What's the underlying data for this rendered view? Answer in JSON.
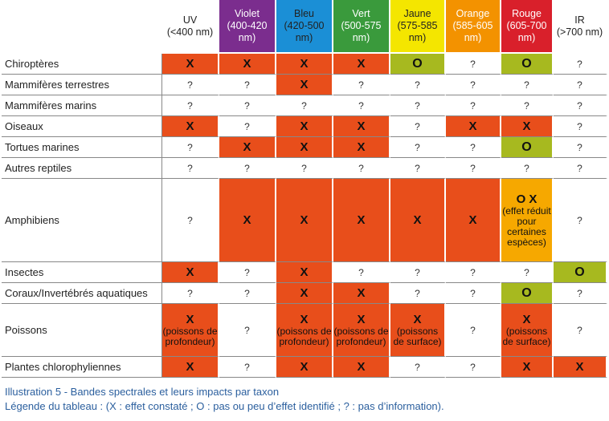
{
  "columns": [
    {
      "name": "UV",
      "range": "(<400 nm)",
      "color": "#ffffff",
      "text": "#222222"
    },
    {
      "name": "Violet",
      "range": "(400-420 nm)",
      "color": "#7b2d8e",
      "text": "#ffffff"
    },
    {
      "name": "Bleu",
      "range": "(420-500 nm)",
      "color": "#1b8fd6",
      "text": "#222222"
    },
    {
      "name": "Vert",
      "range": "(500-575 nm)",
      "color": "#3a9a3c",
      "text": "#ffffff"
    },
    {
      "name": "Jaune",
      "range": "(575-585 nm)",
      "color": "#f4e600",
      "text": "#222222"
    },
    {
      "name": "Orange",
      "range": "(585-605 nm)",
      "color": "#f39200",
      "text": "#ffffff"
    },
    {
      "name": "Rouge",
      "range": "(605-700 nm)",
      "color": "#d9202b",
      "text": "#ffffff"
    },
    {
      "name": "IR",
      "range": "(>700 nm)",
      "color": "#ffffff",
      "text": "#222222"
    }
  ],
  "legend_colors": {
    "constate": "#e84e1b",
    "peu": "#a7b91f",
    "reduit": "#f6a800"
  },
  "rows": [
    {
      "taxon": "Chiroptères",
      "cells": [
        {
          "v": "X",
          "bg": "#e84e1b"
        },
        {
          "v": "X",
          "bg": "#e84e1b"
        },
        {
          "v": "X",
          "bg": "#e84e1b"
        },
        {
          "v": "X",
          "bg": "#e84e1b"
        },
        {
          "v": "O",
          "bg": "#a7b91f"
        },
        {
          "v": "?",
          "bg": "#ffffff"
        },
        {
          "v": "O",
          "bg": "#a7b91f"
        },
        {
          "v": "?",
          "bg": "#ffffff"
        }
      ]
    },
    {
      "taxon": "Mammifères terrestres",
      "cells": [
        {
          "v": "?",
          "bg": "#ffffff"
        },
        {
          "v": "?",
          "bg": "#ffffff"
        },
        {
          "v": "X",
          "bg": "#e84e1b"
        },
        {
          "v": "?",
          "bg": "#ffffff"
        },
        {
          "v": "?",
          "bg": "#ffffff"
        },
        {
          "v": "?",
          "bg": "#ffffff"
        },
        {
          "v": "?",
          "bg": "#ffffff"
        },
        {
          "v": "?",
          "bg": "#ffffff"
        }
      ]
    },
    {
      "taxon": "Mammifères marins",
      "cells": [
        {
          "v": "?",
          "bg": "#ffffff"
        },
        {
          "v": "?",
          "bg": "#ffffff"
        },
        {
          "v": "?",
          "bg": "#ffffff"
        },
        {
          "v": "?",
          "bg": "#ffffff"
        },
        {
          "v": "?",
          "bg": "#ffffff"
        },
        {
          "v": "?",
          "bg": "#ffffff"
        },
        {
          "v": "?",
          "bg": "#ffffff"
        },
        {
          "v": "?",
          "bg": "#ffffff"
        }
      ]
    },
    {
      "taxon": "Oiseaux",
      "cells": [
        {
          "v": "X",
          "bg": "#e84e1b"
        },
        {
          "v": "?",
          "bg": "#ffffff"
        },
        {
          "v": "X",
          "bg": "#e84e1b"
        },
        {
          "v": "X",
          "bg": "#e84e1b"
        },
        {
          "v": "?",
          "bg": "#ffffff"
        },
        {
          "v": "X",
          "bg": "#e84e1b"
        },
        {
          "v": "X",
          "bg": "#e84e1b"
        },
        {
          "v": "?",
          "bg": "#ffffff"
        }
      ]
    },
    {
      "taxon": "Tortues marines",
      "cells": [
        {
          "v": "?",
          "bg": "#ffffff"
        },
        {
          "v": "X",
          "bg": "#e84e1b"
        },
        {
          "v": "X",
          "bg": "#e84e1b"
        },
        {
          "v": "X",
          "bg": "#e84e1b"
        },
        {
          "v": "?",
          "bg": "#ffffff"
        },
        {
          "v": "?",
          "bg": "#ffffff"
        },
        {
          "v": "O",
          "bg": "#a7b91f"
        },
        {
          "v": "?",
          "bg": "#ffffff"
        }
      ]
    },
    {
      "taxon": "Autres reptiles",
      "cells": [
        {
          "v": "?",
          "bg": "#ffffff"
        },
        {
          "v": "?",
          "bg": "#ffffff"
        },
        {
          "v": "?",
          "bg": "#ffffff"
        },
        {
          "v": "?",
          "bg": "#ffffff"
        },
        {
          "v": "?",
          "bg": "#ffffff"
        },
        {
          "v": "?",
          "bg": "#ffffff"
        },
        {
          "v": "?",
          "bg": "#ffffff"
        },
        {
          "v": "?",
          "bg": "#ffffff"
        }
      ]
    },
    {
      "taxon": "Amphibiens",
      "cells": [
        {
          "v": "?",
          "bg": "#ffffff"
        },
        {
          "v": "X",
          "bg": "#e84e1b"
        },
        {
          "v": "X",
          "bg": "#e84e1b"
        },
        {
          "v": "X",
          "bg": "#e84e1b"
        },
        {
          "v": "X",
          "bg": "#e84e1b"
        },
        {
          "v": "X",
          "bg": "#e84e1b"
        },
        {
          "v": "O X",
          "bg": "#f6a800",
          "note": "(effet réduit pour certaines espèces)"
        },
        {
          "v": "?",
          "bg": "#ffffff"
        }
      ]
    },
    {
      "taxon": "Insectes",
      "cells": [
        {
          "v": "X",
          "bg": "#e84e1b"
        },
        {
          "v": "?",
          "bg": "#ffffff"
        },
        {
          "v": "X",
          "bg": "#e84e1b"
        },
        {
          "v": "?",
          "bg": "#ffffff"
        },
        {
          "v": "?",
          "bg": "#ffffff"
        },
        {
          "v": "?",
          "bg": "#ffffff"
        },
        {
          "v": "?",
          "bg": "#ffffff"
        },
        {
          "v": "O",
          "bg": "#a7b91f"
        }
      ]
    },
    {
      "taxon": "Coraux/Invertébrés aquatiques",
      "cells": [
        {
          "v": "?",
          "bg": "#ffffff"
        },
        {
          "v": "?",
          "bg": "#ffffff"
        },
        {
          "v": "X",
          "bg": "#e84e1b"
        },
        {
          "v": "X",
          "bg": "#e84e1b"
        },
        {
          "v": "?",
          "bg": "#ffffff"
        },
        {
          "v": "?",
          "bg": "#ffffff"
        },
        {
          "v": "O",
          "bg": "#a7b91f"
        },
        {
          "v": "?",
          "bg": "#ffffff"
        }
      ]
    },
    {
      "taxon": "Poissons",
      "cells": [
        {
          "v": "X",
          "bg": "#e84e1b",
          "note": "(poissons de profondeur)"
        },
        {
          "v": "?",
          "bg": "#ffffff"
        },
        {
          "v": "X",
          "bg": "#e84e1b",
          "note": "(poissons de profondeur)"
        },
        {
          "v": "X",
          "bg": "#e84e1b",
          "note": "(poissons de profondeur)"
        },
        {
          "v": "X",
          "bg": "#e84e1b",
          "note": "(poissons de surface)"
        },
        {
          "v": "?",
          "bg": "#ffffff"
        },
        {
          "v": "X",
          "bg": "#e84e1b",
          "note": "(poissons de surface)"
        },
        {
          "v": "?",
          "bg": "#ffffff"
        }
      ]
    },
    {
      "taxon": "Plantes chlorophyliennes",
      "cells": [
        {
          "v": "X",
          "bg": "#e84e1b"
        },
        {
          "v": "?",
          "bg": "#ffffff"
        },
        {
          "v": "X",
          "bg": "#e84e1b"
        },
        {
          "v": "X",
          "bg": "#e84e1b"
        },
        {
          "v": "?",
          "bg": "#ffffff"
        },
        {
          "v": "?",
          "bg": "#ffffff"
        },
        {
          "v": "X",
          "bg": "#e84e1b"
        },
        {
          "v": "X",
          "bg": "#e84e1b"
        }
      ]
    }
  ],
  "caption": {
    "title": "Illustration 5 - Bandes spectrales et leurs impacts par taxon",
    "legend": "Légende du tableau : (X : effet constaté ; O : pas ou peu d’effet identifié ; ? : pas d’information)."
  }
}
